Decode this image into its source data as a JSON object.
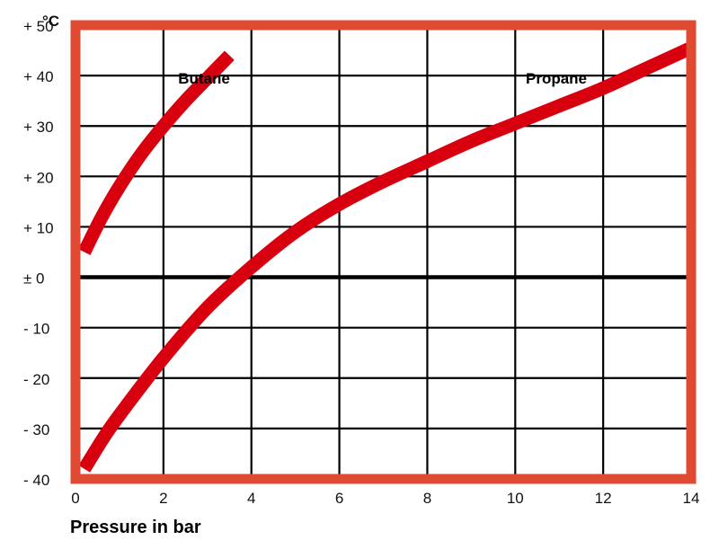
{
  "chart_data": {
    "type": "line",
    "xlabel": "Pressure in bar",
    "ylabel": "°C",
    "xlim": [
      0,
      14
    ],
    "ylim": [
      -40,
      50
    ],
    "grid": true,
    "x_ticks": [
      0,
      2,
      4,
      6,
      8,
      10,
      12,
      14
    ],
    "y_tick_labels": [
      {
        "value": 50,
        "label": "+ 50"
      },
      {
        "value": 40,
        "label": "+ 40"
      },
      {
        "value": 30,
        "label": "+ 30"
      },
      {
        "value": 20,
        "label": "+ 20"
      },
      {
        "value": 10,
        "label": "+ 10"
      },
      {
        "value": 0,
        "label": "±  0"
      },
      {
        "value": -10,
        "label": "- 10"
      },
      {
        "value": -20,
        "label": "- 20"
      },
      {
        "value": -30,
        "label": "- 30"
      },
      {
        "value": -40,
        "label": "- 40"
      }
    ],
    "series": [
      {
        "name": "Butane",
        "x": [
          0.2,
          0.6,
          1.0,
          1.5,
          2.0,
          2.5,
          3.0,
          3.5
        ],
        "y": [
          5,
          12,
          18,
          24.5,
          30,
          35,
          39.5,
          44
        ]
      },
      {
        "name": "Propane",
        "x": [
          0.2,
          0.7,
          1.2,
          2.0,
          3.0,
          4.0,
          5.0,
          6.0,
          7.0,
          8.0,
          9.0,
          10.0,
          11.0,
          12.0,
          13.0,
          14.0
        ],
        "y": [
          -38,
          -31,
          -25,
          -16,
          -6,
          2,
          9,
          14.5,
          19,
          23,
          27,
          30.5,
          34,
          37.5,
          41.5,
          45.5
        ]
      }
    ],
    "colors": {
      "frame": "#e04a32",
      "curve": "#d8000f",
      "grid": "#000000"
    }
  }
}
